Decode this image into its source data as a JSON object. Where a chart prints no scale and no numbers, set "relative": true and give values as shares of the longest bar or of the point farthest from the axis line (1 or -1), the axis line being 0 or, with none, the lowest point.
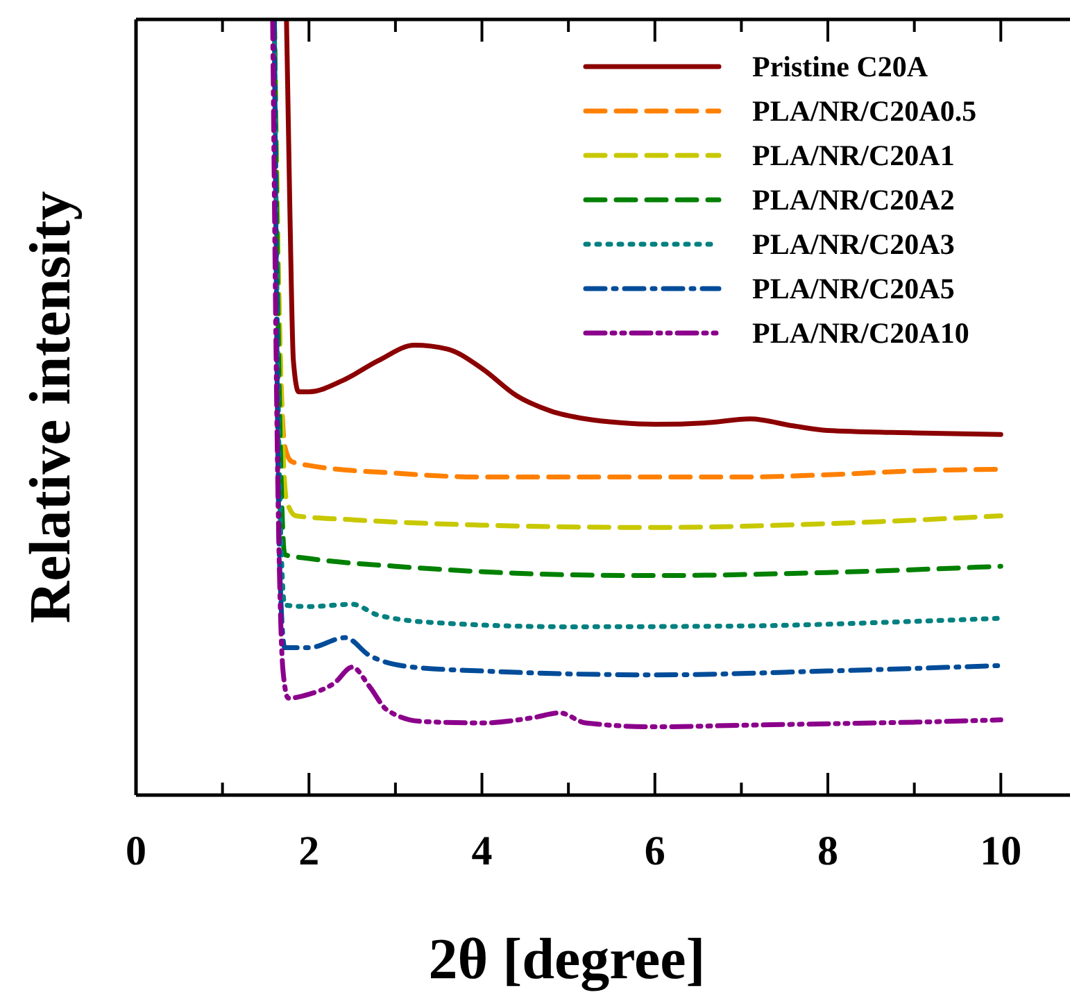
{
  "chart_data": {
    "type": "line",
    "relative": true,
    "xlabel": "2θ [degree]",
    "ylabel": "Relative intensity",
    "xlim": [
      0,
      10.8
    ],
    "xticks": [
      0,
      {
        "value": 1,
        "label": null
      },
      2,
      {
        "value": 3,
        "label": null
      },
      4,
      {
        "value": 5,
        "label": null
      },
      6,
      {
        "value": 7,
        "label": null
      },
      8,
      {
        "value": 9,
        "label": null
      },
      10
    ],
    "legend": "top right",
    "grid": false,
    "series": [
      {
        "name": "Pristine C20A",
        "color": "#8b0000",
        "line_style": "solid",
        "x": [
          1.74,
          1.78,
          1.82,
          1.88,
          2.0,
          2.4,
          2.8,
          3.22,
          3.6,
          4.0,
          4.4,
          4.8,
          5.2,
          5.6,
          6.0,
          6.6,
          7.1,
          7.6,
          8.0,
          9.0,
          10.0
        ],
        "values": [
          1.0,
          0.75,
          0.56,
          0.52,
          0.52,
          0.535,
          0.56,
          0.58,
          0.575,
          0.55,
          0.515,
          0.495,
          0.485,
          0.48,
          0.478,
          0.48,
          0.485,
          0.476,
          0.47,
          0.467,
          0.465
        ]
      },
      {
        "name": "PLA/NR/C20A0.5",
        "color": "#ff8000",
        "line_style": "dashed",
        "x": [
          1.6,
          1.66,
          1.72,
          1.8,
          2.0,
          3,
          4,
          5,
          6,
          7,
          8,
          9,
          10
        ],
        "values": [
          1.0,
          0.6,
          0.45,
          0.43,
          0.425,
          0.415,
          0.41,
          0.41,
          0.41,
          0.41,
          0.413,
          0.418,
          0.42
        ]
      },
      {
        "name": "PLA/NR/C20A1",
        "color": "#c8c800",
        "line_style": "dashed",
        "x": [
          1.6,
          1.66,
          1.74,
          1.85,
          2.5,
          4,
          6,
          8,
          10
        ],
        "values": [
          1.0,
          0.6,
          0.38,
          0.36,
          0.355,
          0.348,
          0.345,
          0.35,
          0.36
        ]
      },
      {
        "name": "PLA/NR/C20A2",
        "color": "#008000",
        "line_style": "dashed",
        "x": [
          1.6,
          1.66,
          1.72,
          2.0,
          3,
          4,
          5,
          6,
          8,
          10
        ],
        "values": [
          1.0,
          0.5,
          0.31,
          0.305,
          0.295,
          0.288,
          0.284,
          0.283,
          0.287,
          0.295
        ]
      },
      {
        "name": "PLA/NR/C20A3",
        "color": "#008080",
        "line_style": "dotted",
        "x": [
          1.6,
          1.66,
          1.72,
          2.0,
          2.5,
          2.8,
          3.5,
          5,
          7,
          9,
          10
        ],
        "values": [
          1.0,
          0.4,
          0.245,
          0.243,
          0.246,
          0.232,
          0.222,
          0.217,
          0.218,
          0.224,
          0.228
        ]
      },
      {
        "name": "PLA/NR/C20A5",
        "color": "#004c99",
        "line_style": "dashdot",
        "x": [
          1.6,
          1.66,
          1.72,
          2.0,
          2.42,
          2.7,
          3.2,
          4,
          6,
          8,
          10
        ],
        "values": [
          1.0,
          0.3,
          0.19,
          0.19,
          0.203,
          0.18,
          0.165,
          0.16,
          0.155,
          0.16,
          0.167
        ]
      },
      {
        "name": "PLA/NR/C20A10",
        "color": "#8b008b",
        "line_style": "dashdotdot",
        "x": [
          1.58,
          1.64,
          1.7,
          1.76,
          2.0,
          2.3,
          2.5,
          2.7,
          2.9,
          3.3,
          4.0,
          4.6,
          4.9,
          5.2,
          6,
          7,
          8,
          9,
          10
        ],
        "values": [
          1.0,
          0.4,
          0.16,
          0.125,
          0.13,
          0.145,
          0.165,
          0.14,
          0.11,
          0.095,
          0.093,
          0.1,
          0.106,
          0.093,
          0.088,
          0.09,
          0.092,
          0.094,
          0.097
        ]
      }
    ]
  }
}
